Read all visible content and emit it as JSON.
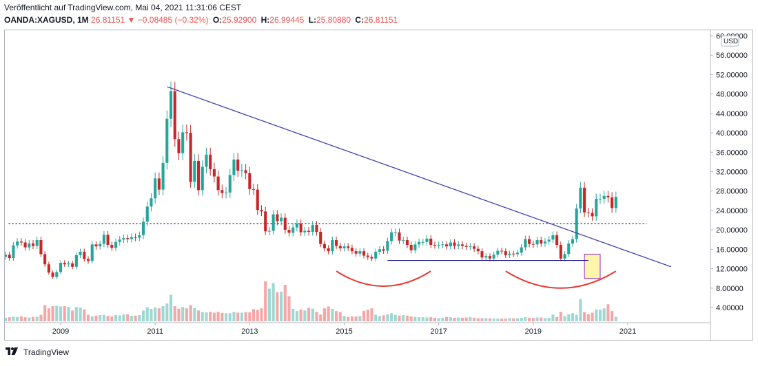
{
  "header": {
    "published": "Veröffentlicht auf TradingView.com, Mai 04, 2021 11:31:06 CEST",
    "symbol": "OANDA:XAGUSD, 1M",
    "last": "26.81151",
    "change_arrow": "▼",
    "change": "−0.08485 (−0.32%)",
    "o_label": "O:",
    "o_value": "25.92900",
    "h_label": "H:",
    "h_value": "26.99445",
    "l_label": "L:",
    "l_value": "25.80880",
    "c_label": "C:",
    "c_value": "26.81151"
  },
  "footer": {
    "brand": "TradingView",
    "logo_icon": "tradingview-logo-icon"
  },
  "colors": {
    "up": "#26a69a",
    "down": "#c62828",
    "trend": "#3f3fb0",
    "arc": "#e53935",
    "hline": "#1a1a8c",
    "level": "#3f3f9f"
  },
  "chart_data": {
    "type": "candlestick",
    "title": "OANDA:XAGUSD, 1M",
    "currency": "USD",
    "ylim": [
      0,
      60
    ],
    "ytick_labels": [
      "4.00000",
      "8.00000",
      "12.00000",
      "16.00000",
      "20.00000",
      "24.00000",
      "28.00000",
      "32.00000",
      "36.00000",
      "40.00000",
      "44.00000",
      "48.00000",
      "52.00000",
      "56.00000",
      "60.00000"
    ],
    "xtick_labels": [
      "2009",
      "2011",
      "2013",
      "2015",
      "2017",
      "2019",
      "2021"
    ],
    "x_range": [
      "2007-11",
      "2022-10"
    ],
    "candles_monthly_from": "2007-11",
    "candles_monthly_to": "2021-05",
    "closes": [
      14.9,
      14.2,
      16.8,
      17.6,
      17.4,
      16.4,
      17.2,
      16.7,
      17.9,
      15.0,
      12.9,
      11.2,
      10.3,
      11.3,
      13.2,
      12.9,
      13.1,
      12.4,
      14.8,
      15.5,
      14.0,
      13.6,
      17.0,
      16.6,
      17.1,
      19.0,
      16.9,
      16.3,
      17.5,
      18.0,
      18.3,
      18.1,
      18.5,
      18.4,
      18.9,
      21.7,
      24.8,
      26.5,
      30.6,
      28.3,
      33.8,
      42.9,
      48.6,
      38.7,
      35.8,
      40.1,
      40.0,
      29.9,
      34.2,
      28.2,
      33.0,
      35.5,
      32.5,
      31.0,
      28.2,
      27.6,
      27.7,
      31.3,
      34.5,
      32.2,
      32.3,
      31.7,
      28.4,
      28.3,
      24.1,
      23.8,
      19.7,
      19.8,
      23.2,
      21.8,
      22.5,
      20.0,
      19.4,
      20.5,
      21.3,
      19.5,
      19.8,
      19.6,
      21.0,
      19.6,
      17.1,
      16.2,
      15.6,
      17.9,
      16.7,
      16.2,
      16.6,
      16.3,
      15.6,
      15.1,
      15.6,
      14.7,
      14.4,
      14.1,
      15.5,
      16.0,
      15.7,
      17.7,
      19.5,
      19.5,
      17.8,
      17.9,
      16.9,
      15.8,
      17.0,
      17.5,
      17.5,
      18.2,
      16.9,
      16.8,
      16.9,
      17.0,
      16.6,
      17.4,
      16.7,
      17.0,
      16.7,
      16.5,
      16.6,
      16.1,
      15.6,
      14.3,
      14.6,
      14.1,
      14.9,
      15.7,
      15.6,
      14.8,
      15.1,
      15.0,
      15.3,
      16.4,
      18.1,
      17.1,
      17.0,
      17.9,
      17.2,
      17.6,
      18.0,
      18.9,
      16.9,
      14.1,
      15.0,
      17.2,
      18.1,
      24.4,
      28.7,
      23.6,
      23.5,
      22.8,
      26.4,
      26.4,
      27.0,
      26.7,
      24.5,
      26.8
    ],
    "volume_max_label_value": 9.5,
    "volumes": [
      1.3,
      1.5,
      1.7,
      1.6,
      1.8,
      1.5,
      1.4,
      1.6,
      1.7,
      2.4,
      6.0,
      4.8,
      5.6,
      5.7,
      5.5,
      5.6,
      5.4,
      4.0,
      5.3,
      5.1,
      4.4,
      2.4,
      1.8,
      2.1,
      2.3,
      2.4,
      2.0,
      1.8,
      2.3,
      2.2,
      2.5,
      2.6,
      2.0,
      2.1,
      2.3,
      4.0,
      5.2,
      4.6,
      5.1,
      4.8,
      5.6,
      6.6,
      9.8,
      5.6,
      4.7,
      5.3,
      4.8,
      6.0,
      4.9,
      4.0,
      3.4,
      3.3,
      3.5,
      3.2,
      3.5,
      3.1,
      3.0,
      3.0,
      3.5,
      3.2,
      3.2,
      3.4,
      3.3,
      4.5,
      4.2,
      4.8,
      14.8,
      12.1,
      14.2,
      10.8,
      11.0,
      13.5,
      9.3,
      4.6,
      3.8,
      4.4,
      4.0,
      5.0,
      4.7,
      3.5,
      2.5,
      4.8,
      5.5,
      4.6,
      3.8,
      3.4,
      2.0,
      1.6,
      1.8,
      1.8,
      1.9,
      3.9,
      4.3,
      4.8,
      2.4,
      1.9,
      2.2,
      2.6,
      3.0,
      2.4,
      2.1,
      2.3,
      2.1,
      1.8,
      1.6,
      1.5,
      1.5,
      1.4,
      1.5,
      1.3,
      1.2,
      1.3,
      1.6,
      1.5,
      1.3,
      1.4,
      1.3,
      1.4,
      1.5,
      1.3,
      1.1,
      1.1,
      1.2,
      1.1,
      1.0,
      1.0,
      1.0,
      1.0,
      1.2,
      1.1,
      1.1,
      1.3,
      1.5,
      1.3,
      1.2,
      1.4,
      1.4,
      1.2,
      1.3,
      2.5,
      1.6,
      3.5,
      1.9,
      2.6,
      3.0,
      2.4,
      8.3,
      3.4,
      2.6,
      3.2,
      4.4,
      4.3,
      4.8,
      6.3,
      3.8,
      1.6
    ],
    "annotations": [
      {
        "type": "trendline",
        "from": [
          "2011-04",
          49.5
        ],
        "to": [
          "2021-12",
          12.4
        ]
      },
      {
        "type": "horizontal_dotted",
        "value": 21.3
      },
      {
        "type": "horizontal",
        "from": "2015-12",
        "to": "2020-03",
        "value": 13.7
      },
      {
        "type": "arc",
        "from": "2014-11",
        "to": "2016-11",
        "center_value": 11.5,
        "bottom_value": 8.4
      },
      {
        "type": "arc",
        "from": "2018-06",
        "to": "2020-10",
        "center_value": 11.5,
        "bottom_value": 8.0
      },
      {
        "type": "box",
        "from": "2020-02",
        "to": "2020-06",
        "low": 10.0,
        "high": 15.0
      }
    ]
  }
}
